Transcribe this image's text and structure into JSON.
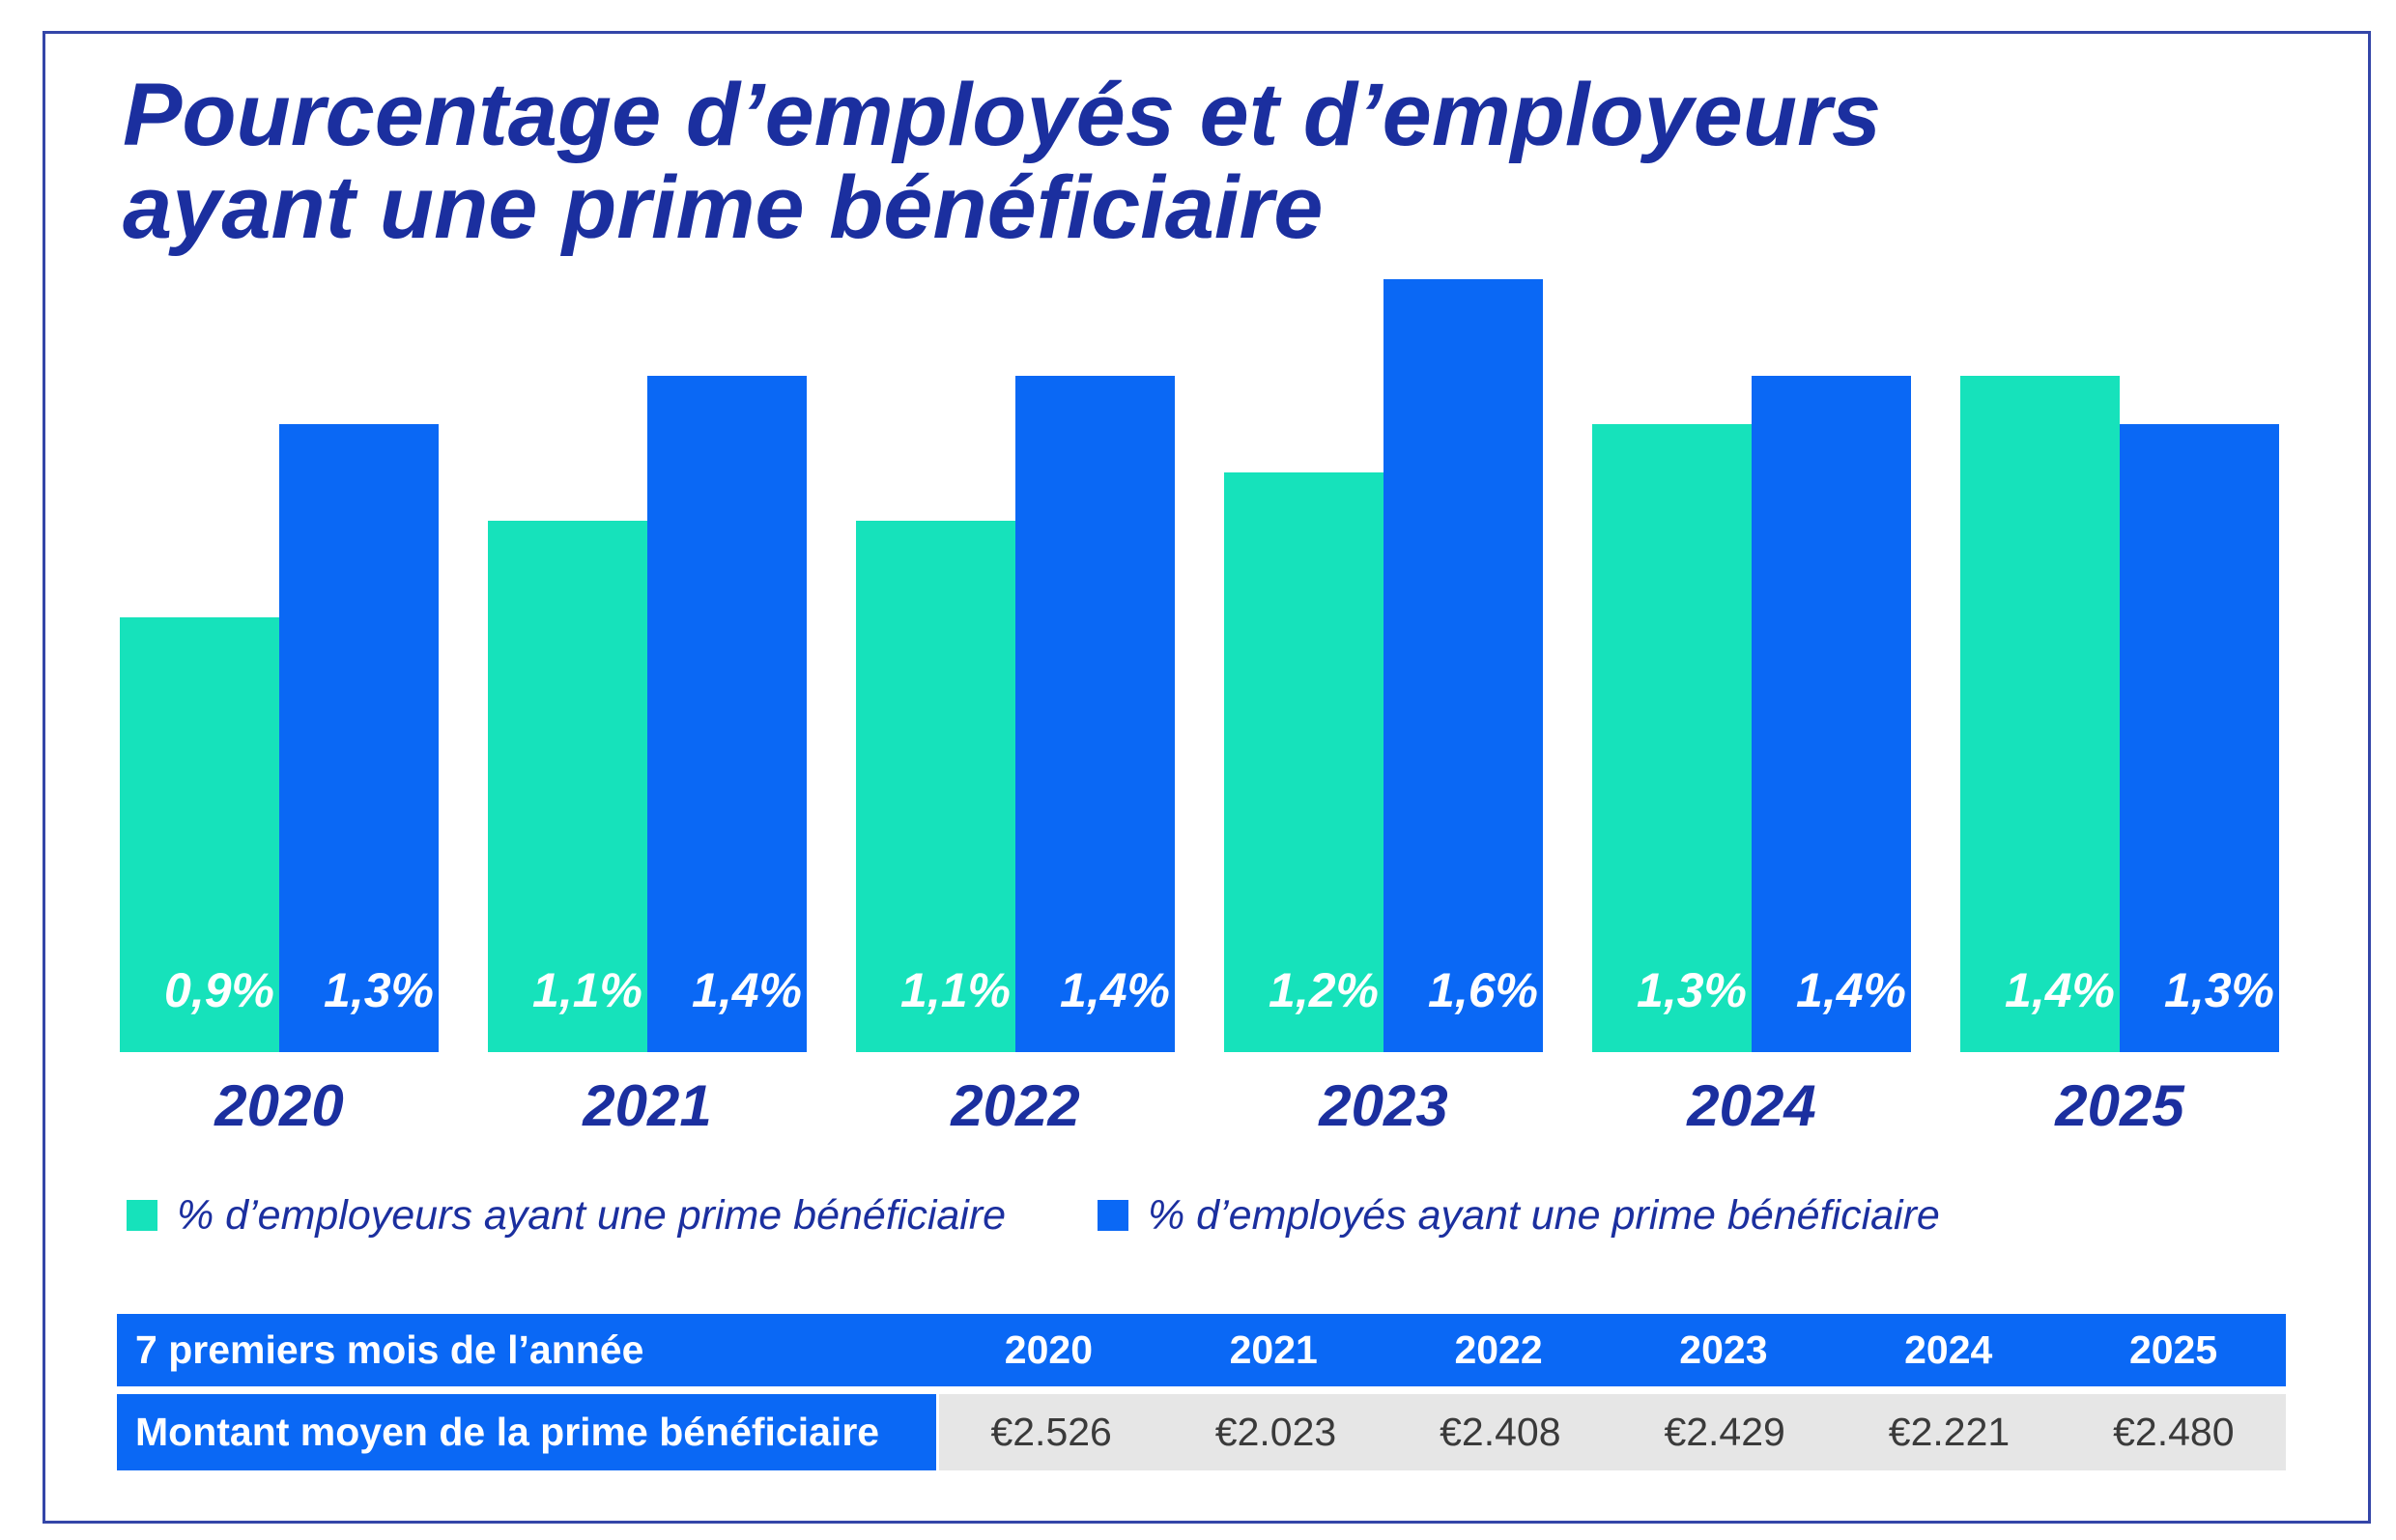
{
  "colors": {
    "title": "#1B2F9F",
    "table_header": "#0A68F5",
    "table_value_background": "#E6E6E6"
  },
  "chart_data": {
    "type": "bar",
    "title": "Pourcentage d’employés et d’employeurs ayant une prime bénéficiaire",
    "categories": [
      "2020",
      "2021",
      "2022",
      "2023",
      "2024",
      "2025"
    ],
    "series": [
      {
        "name": "% d’employeurs ayant une prime bénéficiaire",
        "values": [
          0.9,
          1.1,
          1.1,
          1.2,
          1.3,
          1.4
        ],
        "labels": [
          "0,9%",
          "1,1%",
          "1,1%",
          "1,2%",
          "1,3%",
          "1,4%"
        ],
        "color": "#16E2BB"
      },
      {
        "name": "% d’employés ayant une prime bénéficiaire",
        "values": [
          1.3,
          1.4,
          1.4,
          1.6,
          1.4,
          1.3
        ],
        "labels": [
          "1,3%",
          "1,4%",
          "1,4%",
          "1,6%",
          "1,4%",
          "1,3%"
        ],
        "color": "#0A68F5"
      }
    ],
    "grid": false,
    "legend": "bottom-left"
  },
  "table": {
    "header_label": "7 premiers mois de l’année",
    "years": [
      "2020",
      "2021",
      "2022",
      "2023",
      "2024",
      "2025"
    ],
    "row_label": "Montant moyen de la prime bénéficiaire",
    "values": [
      "€2.526",
      "€2.023",
      "€2.408",
      "€2.429",
      "€2.221",
      "€2.480"
    ]
  }
}
